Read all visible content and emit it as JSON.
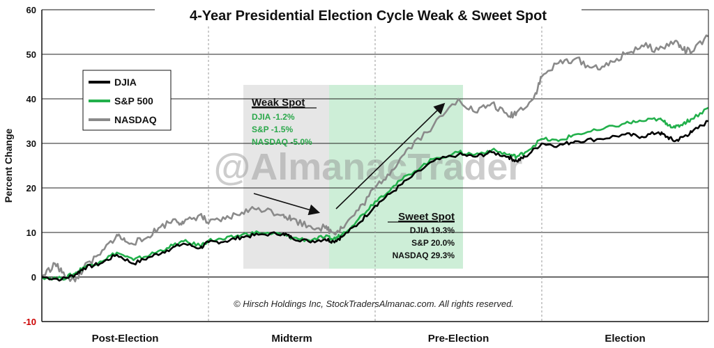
{
  "chart_data": {
    "type": "line",
    "title": "4-Year Presidential Election Cycle Weak & Sweet Spot",
    "ylabel": "Percent Change",
    "ylim": [
      -10,
      60
    ],
    "yticks": [
      -10,
      0,
      10,
      20,
      30,
      40,
      50,
      60
    ],
    "categories": [
      "Post-Election",
      "Midterm",
      "Pre-Election",
      "Election"
    ],
    "grid": true,
    "legend_position": "top-left",
    "x_domain": [
      0,
      4
    ],
    "series": [
      {
        "name": "DJIA",
        "color": "#000000",
        "points": [
          [
            0,
            0
          ],
          [
            0.12,
            -0.5
          ],
          [
            0.2,
            0.5
          ],
          [
            0.25,
            2
          ],
          [
            0.35,
            3
          ],
          [
            0.45,
            5
          ],
          [
            0.55,
            3
          ],
          [
            0.65,
            4.5
          ],
          [
            0.75,
            6
          ],
          [
            0.85,
            7.5
          ],
          [
            0.95,
            6.5
          ],
          [
            1.0,
            7.8
          ],
          [
            1.1,
            8
          ],
          [
            1.2,
            9
          ],
          [
            1.3,
            9.5
          ],
          [
            1.45,
            9.8
          ],
          [
            1.5,
            8.8
          ],
          [
            1.6,
            8
          ],
          [
            1.7,
            8.5
          ],
          [
            1.75,
            8
          ],
          [
            1.8,
            9
          ],
          [
            1.9,
            12
          ],
          [
            2.0,
            16
          ],
          [
            2.1,
            19
          ],
          [
            2.2,
            22
          ],
          [
            2.35,
            26
          ],
          [
            2.5,
            27.5
          ],
          [
            2.6,
            27
          ],
          [
            2.7,
            28
          ],
          [
            2.8,
            27
          ],
          [
            2.85,
            26
          ],
          [
            2.9,
            27
          ],
          [
            3.0,
            30
          ],
          [
            3.1,
            29.5
          ],
          [
            3.2,
            30.5
          ],
          [
            3.35,
            31
          ],
          [
            3.5,
            32
          ],
          [
            3.6,
            31.5
          ],
          [
            3.7,
            32.5
          ],
          [
            3.75,
            31.5
          ],
          [
            3.8,
            30.5
          ],
          [
            3.85,
            31.5
          ],
          [
            3.9,
            32.5
          ],
          [
            4.0,
            35
          ]
        ]
      },
      {
        "name": "S&P 500",
        "color": "#22b04b",
        "points": [
          [
            0,
            0
          ],
          [
            0.12,
            -0.4
          ],
          [
            0.2,
            0.8
          ],
          [
            0.25,
            2.2
          ],
          [
            0.35,
            3.5
          ],
          [
            0.45,
            5.5
          ],
          [
            0.55,
            3.8
          ],
          [
            0.65,
            5
          ],
          [
            0.75,
            6.5
          ],
          [
            0.85,
            8
          ],
          [
            0.95,
            7
          ],
          [
            1.0,
            8.2
          ],
          [
            1.1,
            8.5
          ],
          [
            1.2,
            9.5
          ],
          [
            1.3,
            10
          ],
          [
            1.45,
            9.5
          ],
          [
            1.5,
            8.8
          ],
          [
            1.6,
            8.3
          ],
          [
            1.7,
            9
          ],
          [
            1.75,
            8.5
          ],
          [
            1.8,
            9.5
          ],
          [
            1.9,
            13
          ],
          [
            2.0,
            17
          ],
          [
            2.1,
            20
          ],
          [
            2.2,
            23
          ],
          [
            2.35,
            26.5
          ],
          [
            2.5,
            28
          ],
          [
            2.6,
            27.5
          ],
          [
            2.7,
            28.5
          ],
          [
            2.8,
            27.5
          ],
          [
            2.85,
            27
          ],
          [
            2.9,
            28
          ],
          [
            3.0,
            31
          ],
          [
            3.1,
            30.5
          ],
          [
            3.2,
            32
          ],
          [
            3.35,
            33
          ],
          [
            3.5,
            34.5
          ],
          [
            3.6,
            35
          ],
          [
            3.7,
            35.5
          ],
          [
            3.75,
            34.5
          ],
          [
            3.8,
            33.5
          ],
          [
            3.85,
            34.5
          ],
          [
            3.9,
            35.5
          ],
          [
            4.0,
            38
          ]
        ]
      },
      {
        "name": "NASDAQ",
        "color": "#8a8a8a",
        "points": [
          [
            0,
            0
          ],
          [
            0.08,
            3
          ],
          [
            0.12,
            1
          ],
          [
            0.2,
            -1
          ],
          [
            0.25,
            2
          ],
          [
            0.35,
            5
          ],
          [
            0.45,
            9.5
          ],
          [
            0.5,
            8
          ],
          [
            0.6,
            8
          ],
          [
            0.7,
            11
          ],
          [
            0.8,
            13
          ],
          [
            0.85,
            12
          ],
          [
            0.95,
            14
          ],
          [
            1.0,
            12
          ],
          [
            1.1,
            13
          ],
          [
            1.2,
            14.5
          ],
          [
            1.3,
            15.5
          ],
          [
            1.45,
            14
          ],
          [
            1.5,
            13
          ],
          [
            1.6,
            11.5
          ],
          [
            1.7,
            11
          ],
          [
            1.75,
            10
          ],
          [
            1.8,
            11
          ],
          [
            1.9,
            15
          ],
          [
            2.0,
            20
          ],
          [
            2.1,
            24
          ],
          [
            2.2,
            29
          ],
          [
            2.35,
            34
          ],
          [
            2.5,
            40
          ],
          [
            2.6,
            37
          ],
          [
            2.7,
            39
          ],
          [
            2.8,
            36
          ],
          [
            2.85,
            37
          ],
          [
            2.95,
            40
          ],
          [
            3.0,
            45
          ],
          [
            3.1,
            48
          ],
          [
            3.2,
            49
          ],
          [
            3.3,
            47
          ],
          [
            3.4,
            47.5
          ],
          [
            3.5,
            50
          ],
          [
            3.6,
            52
          ],
          [
            3.7,
            51
          ],
          [
            3.8,
            53
          ],
          [
            3.85,
            51
          ],
          [
            3.9,
            50.5
          ],
          [
            4.0,
            54
          ]
        ]
      }
    ],
    "annotations": {
      "weak_spot": {
        "heading": "Weak Spot",
        "lines": [
          "DJIA -1.2%",
          "S&P -1.5%",
          "NASDAQ -5.0%"
        ]
      },
      "sweet_spot": {
        "heading": "Sweet Spot",
        "lines": [
          "DJIA 19.3%",
          "S&P 20.0%",
          "NASDAQ 29.3%"
        ]
      }
    },
    "watermark": "@AlmanacTrader",
    "copyright": "© Hirsch Holdings Inc, StockTradersAlmanac.com. All rights reserved."
  }
}
